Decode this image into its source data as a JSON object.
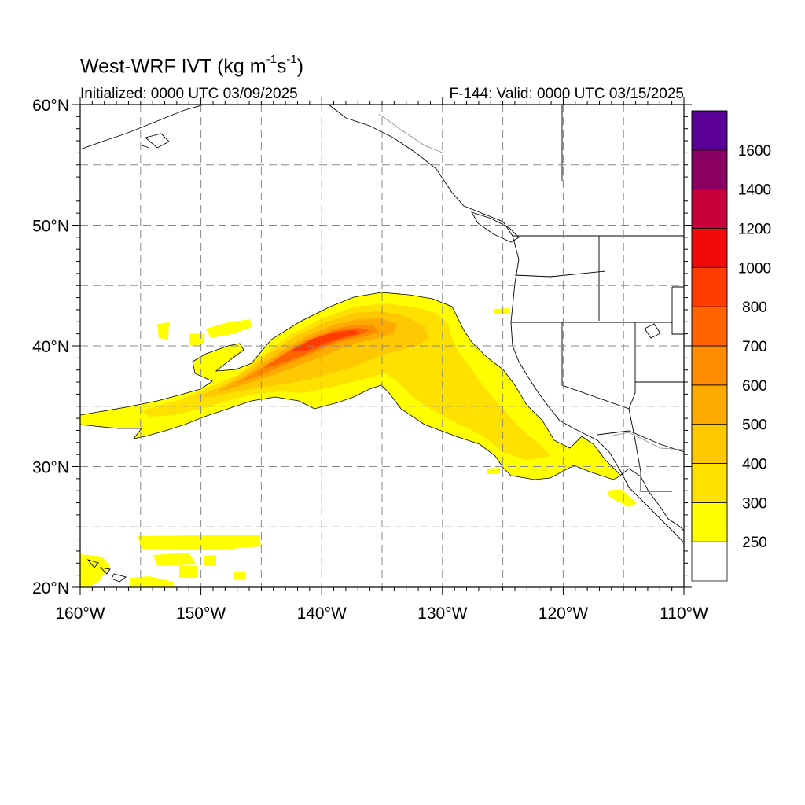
{
  "title": {
    "prefix": "West-WRF IVT (kg m",
    "sup1": "-1",
    "mid": "s",
    "sup2": "-1",
    "suffix": ")"
  },
  "initialized": "Initialized: 0000 UTC 03/09/2025",
  "valid": "F-144: Valid: 0000 UTC 03/15/2025",
  "map": {
    "lon_range": [
      -160,
      -110
    ],
    "lat_range": [
      20,
      60
    ],
    "lon_ticks": [
      {
        "value": -160,
        "label": "160°W"
      },
      {
        "value": -150,
        "label": "150°W"
      },
      {
        "value": -140,
        "label": "140°W"
      },
      {
        "value": -130,
        "label": "130°W"
      },
      {
        "value": -120,
        "label": "120°W"
      },
      {
        "value": -110,
        "label": "110°W"
      }
    ],
    "lat_ticks": [
      {
        "value": 60,
        "label": "60°N"
      },
      {
        "value": 50,
        "label": "50°N"
      },
      {
        "value": 40,
        "label": "40°N"
      },
      {
        "value": 30,
        "label": "30°N"
      },
      {
        "value": 20,
        "label": "20°N"
      }
    ],
    "grid": "dashed every 5°"
  },
  "colorbar": {
    "levels": [
      "250",
      "300",
      "400",
      "500",
      "600",
      "700",
      "800",
      "1000",
      "1200",
      "1400",
      "1600"
    ],
    "colors": [
      "#ffffff",
      "#ffff00",
      "#ffe100",
      "#ffc800",
      "#ffaa00",
      "#ff8c00",
      "#ff6400",
      "#ff3c00",
      "#f00a0a",
      "#c8003c",
      "#8c0064",
      "#5a0096"
    ]
  }
}
